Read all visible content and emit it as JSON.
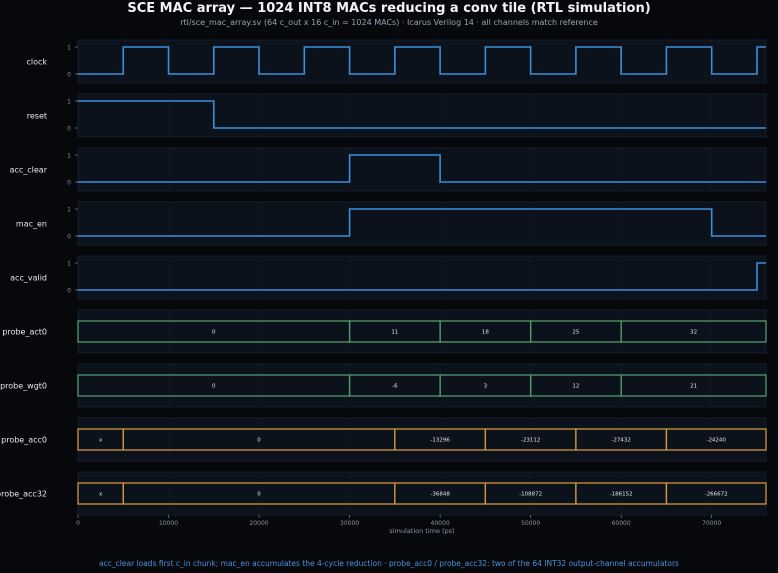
{
  "title": "SCE MAC array — 1024 INT8 MACs reducing a conv tile (RTL simulation)",
  "subtitle": "rtl/sce_mac_array.sv (64 c_out x 16 c_in = 1024 MACs) · Icarus Verilog 14 · all channels match reference",
  "footer": "acc_clear loads first c_in chunk; mac_en accumulates the 4-cycle reduction   ·   probe_acc0 / probe_acc32: two of the 64 INT32 output-channel accumulators",
  "colors": {
    "background": "#06080c",
    "panel": "#0c121b",
    "digital_trace": "#3d8fda",
    "bus_green": "#4f9a6e",
    "bus_orange": "#d1953d",
    "text": "#e6e9ef",
    "axis_text": "#8c95a3"
  },
  "chart_data": {
    "type": "waveform",
    "xlabel": "simulation time (ps)",
    "xlim": [
      0,
      76000
    ],
    "xticks": [
      0,
      10000,
      20000,
      30000,
      40000,
      50000,
      60000,
      70000
    ],
    "grid": true,
    "digital_signals": [
      {
        "name": "clock",
        "yticks": [
          "1",
          "0"
        ],
        "steps": [
          [
            0,
            0
          ],
          [
            5000,
            1
          ],
          [
            10000,
            0
          ],
          [
            15000,
            1
          ],
          [
            20000,
            0
          ],
          [
            25000,
            1
          ],
          [
            30000,
            0
          ],
          [
            35000,
            1
          ],
          [
            40000,
            0
          ],
          [
            45000,
            1
          ],
          [
            50000,
            0
          ],
          [
            55000,
            1
          ],
          [
            60000,
            0
          ],
          [
            65000,
            1
          ],
          [
            70000,
            0
          ],
          [
            75000,
            1
          ]
        ]
      },
      {
        "name": "reset",
        "yticks": [
          "1",
          "0"
        ],
        "steps": [
          [
            0,
            1
          ],
          [
            15000,
            0
          ]
        ]
      },
      {
        "name": "acc_clear",
        "yticks": [
          "1",
          "0"
        ],
        "steps": [
          [
            0,
            0
          ],
          [
            30000,
            1
          ],
          [
            40000,
            0
          ]
        ]
      },
      {
        "name": "mac_en",
        "yticks": [
          "1",
          "0"
        ],
        "steps": [
          [
            0,
            0
          ],
          [
            30000,
            1
          ],
          [
            70000,
            0
          ]
        ]
      },
      {
        "name": "acc_valid",
        "yticks": [
          "1",
          "0"
        ],
        "steps": [
          [
            0,
            0
          ],
          [
            75000,
            1
          ]
        ]
      }
    ],
    "bus_signals": [
      {
        "name": "probe_act0",
        "color": "green",
        "segments": [
          {
            "start": 0,
            "end": 30000,
            "value": "0"
          },
          {
            "start": 30000,
            "end": 40000,
            "value": "11"
          },
          {
            "start": 40000,
            "end": 50000,
            "value": "18"
          },
          {
            "start": 50000,
            "end": 60000,
            "value": "25"
          },
          {
            "start": 60000,
            "end": 76000,
            "value": "32"
          }
        ]
      },
      {
        "name": "probe_wgt0",
        "color": "green",
        "segments": [
          {
            "start": 0,
            "end": 30000,
            "value": "0"
          },
          {
            "start": 30000,
            "end": 40000,
            "value": "-6"
          },
          {
            "start": 40000,
            "end": 50000,
            "value": "3"
          },
          {
            "start": 50000,
            "end": 60000,
            "value": "12"
          },
          {
            "start": 60000,
            "end": 76000,
            "value": "21"
          }
        ]
      },
      {
        "name": "probe_acc0",
        "color": "orange",
        "segments": [
          {
            "start": 0,
            "end": 5000,
            "value": "x"
          },
          {
            "start": 5000,
            "end": 35000,
            "value": "0"
          },
          {
            "start": 35000,
            "end": 45000,
            "value": "-13296"
          },
          {
            "start": 45000,
            "end": 55000,
            "value": "-23112"
          },
          {
            "start": 55000,
            "end": 65000,
            "value": "-27432"
          },
          {
            "start": 65000,
            "end": 76000,
            "value": "-24240"
          }
        ]
      },
      {
        "name": "probe_acc32",
        "color": "orange",
        "segments": [
          {
            "start": 0,
            "end": 5000,
            "value": "x"
          },
          {
            "start": 5000,
            "end": 35000,
            "value": "0"
          },
          {
            "start": 35000,
            "end": 45000,
            "value": "-36848"
          },
          {
            "start": 45000,
            "end": 55000,
            "value": "-108872"
          },
          {
            "start": 55000,
            "end": 65000,
            "value": "-186152"
          },
          {
            "start": 65000,
            "end": 76000,
            "value": "-266672"
          }
        ]
      }
    ]
  }
}
